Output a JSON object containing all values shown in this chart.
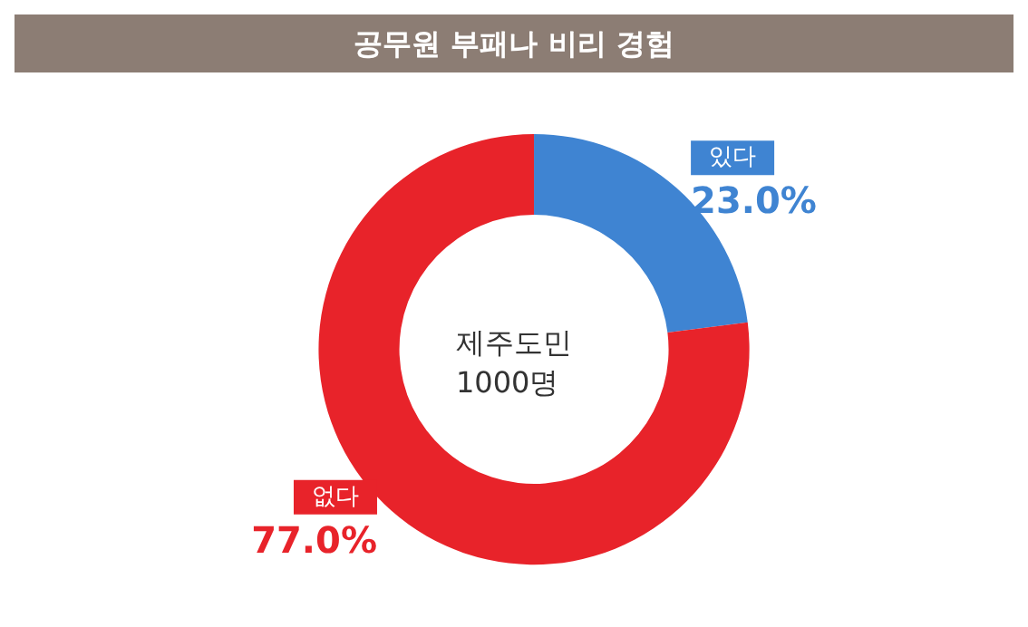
{
  "chart_data": {
    "type": "donut",
    "title": "공무원 부패나 비리 경험",
    "categories": [
      "있다",
      "없다"
    ],
    "values": [
      23.0,
      77.0
    ],
    "colors": [
      "#3f84d2",
      "#e8232a"
    ],
    "value_labels": [
      "23.0%",
      "77.0%"
    ],
    "annotations": [
      "제주도민\n1000명"
    ],
    "legend": false
  }
}
